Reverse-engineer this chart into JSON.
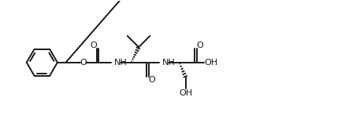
{
  "background_color": "#ffffff",
  "line_color": "#1a1a1a",
  "lw": 1.4,
  "fig_width": 4.38,
  "fig_height": 1.52,
  "dpi": 100,
  "xlim": [
    0,
    11
  ],
  "ylim": [
    0,
    4
  ]
}
